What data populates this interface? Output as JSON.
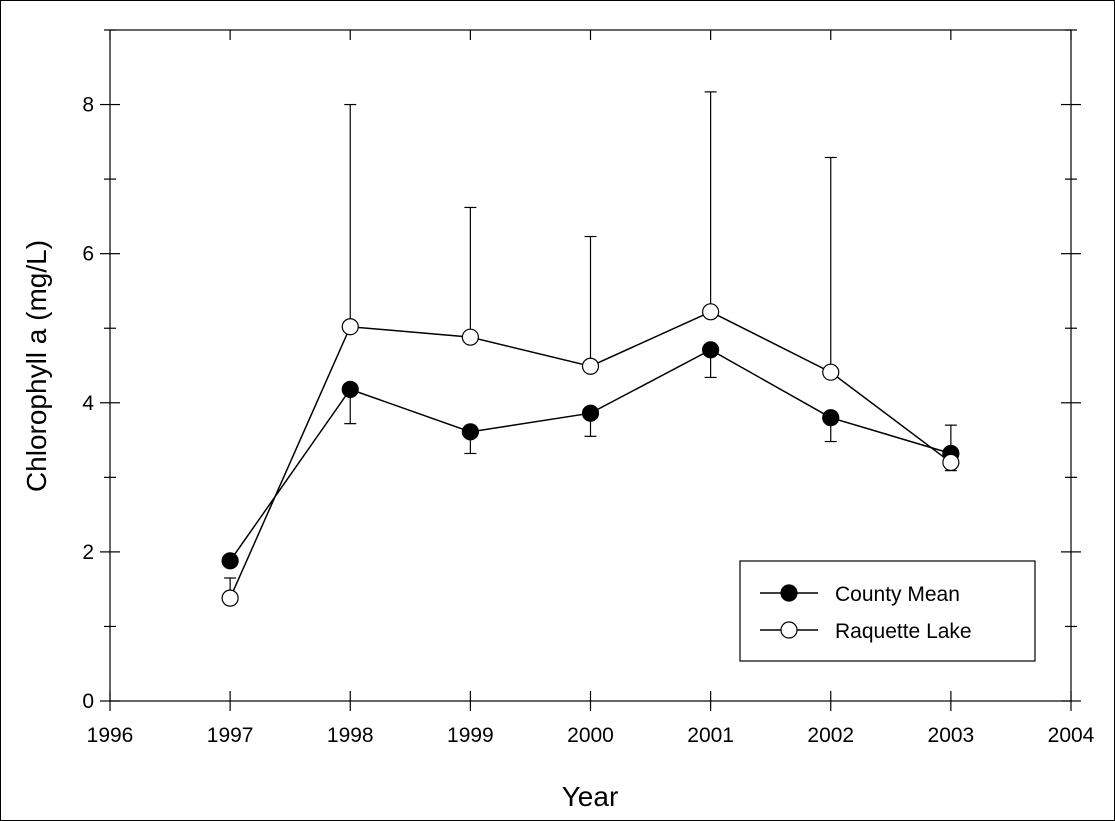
{
  "chart_data": {
    "type": "line",
    "xlabel": "Year",
    "ylabel": "Chlorophyll a (mg/L)",
    "xlim": [
      1996,
      2004
    ],
    "ylim": [
      0,
      9
    ],
    "x_ticks": [
      1996,
      1997,
      1998,
      1999,
      2000,
      2001,
      2002,
      2003,
      2004
    ],
    "y_ticks": [
      0,
      2,
      4,
      6,
      8
    ],
    "x_tick_labels": [
      "1996",
      "1997",
      "1998",
      "1999",
      "2000",
      "2001",
      "2002",
      "2003",
      "2004"
    ],
    "y_tick_labels": [
      "0",
      "2",
      "4",
      "6",
      "8"
    ],
    "grid": false,
    "legend_position": "bottom-right",
    "series": [
      {
        "name": "County Mean",
        "marker": "filled-circle",
        "x": [
          1997,
          1998,
          1999,
          2000,
          2001,
          2002,
          2003
        ],
        "y": [
          1.88,
          4.18,
          3.61,
          3.86,
          4.71,
          3.8,
          3.32
        ],
        "error_lower": [
          null,
          3.72,
          3.32,
          3.55,
          4.34,
          3.48,
          3.09
        ],
        "error_upper": [
          null,
          null,
          null,
          null,
          null,
          null,
          3.7
        ]
      },
      {
        "name": "Raquette Lake",
        "marker": "open-circle",
        "x": [
          1997,
          1998,
          1999,
          2000,
          2001,
          2002,
          2003
        ],
        "y": [
          1.38,
          5.02,
          4.88,
          4.49,
          5.22,
          4.41,
          3.2
        ],
        "error_lower": [
          null,
          null,
          null,
          null,
          null,
          null,
          null
        ],
        "error_upper": [
          1.65,
          8.0,
          6.62,
          6.23,
          8.17,
          7.29,
          null
        ]
      }
    ]
  }
}
